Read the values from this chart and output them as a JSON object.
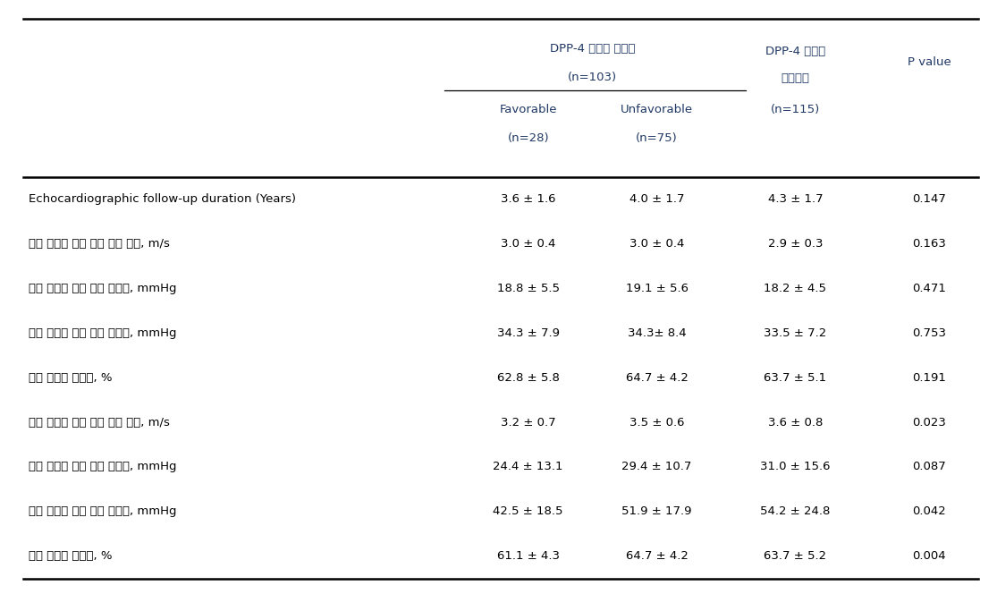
{
  "col_headers": {
    "group1_line1": "DPP-4 저해제 사용군",
    "group1_line2": "(n=103)",
    "group1_sub1": "Favorable",
    "group1_sub1_n": "(n=28)",
    "group1_sub2": "Unfavorable",
    "group1_sub2_n": "(n=75)",
    "group2_line1": "DPP-4 저해제",
    "group2_line2": "비사용군",
    "group2_n": "(n=115)",
    "pvalue": "P value"
  },
  "rows": [
    {
      "label": "Echocardiographic follow-up duration (Years)",
      "fav": "3.6 ± 1.6",
      "unfav": "4.0 ± 1.7",
      "nonuser": "4.3 ± 1.7",
      "p": "0.147"
    },
    {
      "label": "기저 대동맥 판막 최대 혈류 속도, m/s",
      "fav": "3.0 ± 0.4",
      "unfav": "3.0 ± 0.4",
      "nonuser": "2.9 ± 0.3",
      "p": "0.163"
    },
    {
      "label": "기저 대동맥 판막 평균 압력차, mmHg",
      "fav": "18.8 ± 5.5",
      "unfav": "19.1 ± 5.6",
      "nonuser": "18.2 ± 4.5",
      "p": "0.471"
    },
    {
      "label": "기저 대동맥 판막 최고 압력차, mmHg",
      "fav": "34.3 ± 7.9",
      "unfav": "34.3± 8.4",
      "nonuser": "33.5 ± 7.2",
      "p": "0.753"
    },
    {
      "label": "기저 좌심실 구혈률, %",
      "fav": "62.8 ± 5.8",
      "unfav": "64.7 ± 4.2",
      "nonuser": "63.7 ± 5.1",
      "p": "0.191"
    },
    {
      "label": "최종 대동맥 판막 최대 혈류 속도, m/s",
      "fav": "3.2 ± 0.7",
      "unfav": "3.5 ± 0.6",
      "nonuser": "3.6 ± 0.8",
      "p": "0.023"
    },
    {
      "label": "최종 대동맥 판막 평균 압력차, mmHg",
      "fav": "24.4 ± 13.1",
      "unfav": "29.4 ± 10.7",
      "nonuser": "31.0 ± 15.6",
      "p": "0.087"
    },
    {
      "label": "최종 대동맥 판막 최고 압력차, mmHg",
      "fav": "42.5 ± 18.5",
      "unfav": "51.9 ± 17.9",
      "nonuser": "54.2 ± 24.8",
      "p": "0.042"
    },
    {
      "label": "최종 좌심실 구혈률, %",
      "fav": "61.1 ± 4.3",
      "unfav": "64.7 ± 4.2",
      "nonuser": "63.7 ± 5.2",
      "p": "0.004"
    }
  ],
  "figsize": [
    11.15,
    6.64
  ],
  "dpi": 100,
  "bg_color": "#ffffff",
  "text_color": "#000000",
  "header_color": "#1f3864",
  "line_color": "#000000",
  "font_size": 9.5,
  "header_font_size": 9.5
}
